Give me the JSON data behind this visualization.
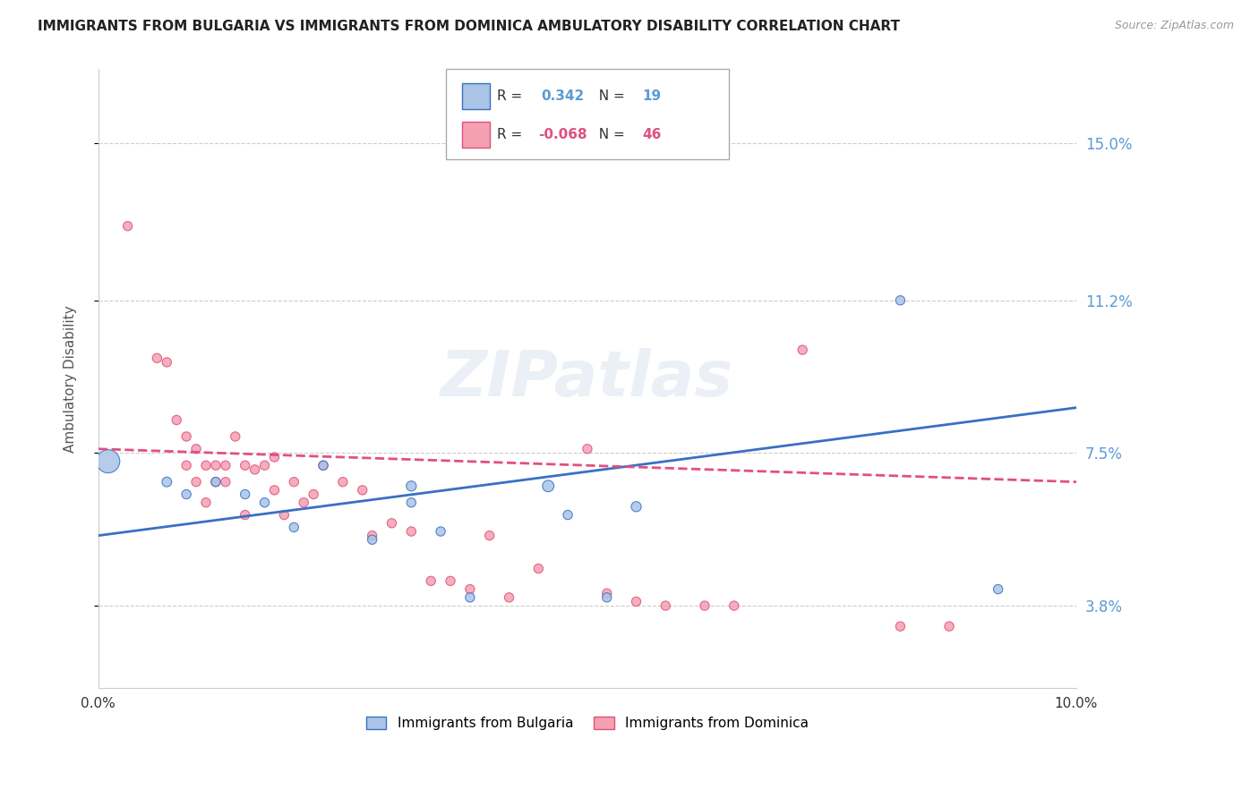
{
  "title": "IMMIGRANTS FROM BULGARIA VS IMMIGRANTS FROM DOMINICA AMBULATORY DISABILITY CORRELATION CHART",
  "source": "Source: ZipAtlas.com",
  "ylabel": "Ambulatory Disability",
  "ytick_labels": [
    "3.8%",
    "7.5%",
    "11.2%",
    "15.0%"
  ],
  "ytick_values": [
    0.038,
    0.075,
    0.112,
    0.15
  ],
  "xlim": [
    0.0,
    0.1
  ],
  "ylim": [
    0.018,
    0.168
  ],
  "legend_label1": "Immigrants from Bulgaria",
  "legend_label2": "Immigrants from Dominica",
  "bulgaria_R": "0.342",
  "bulgaria_N": "19",
  "dominica_R": "-0.068",
  "dominica_N": "46",
  "color_bulgaria": "#aac4e8",
  "color_dominica": "#f4a0b0",
  "color_bulgaria_line": "#3a6fc4",
  "color_dominica_line": "#e05080",
  "watermark": "ZIPatlas",
  "bulgaria_x": [
    0.001,
    0.007,
    0.009,
    0.012,
    0.015,
    0.017,
    0.02,
    0.023,
    0.028,
    0.032,
    0.032,
    0.035,
    0.038,
    0.046,
    0.048,
    0.052,
    0.055,
    0.082,
    0.092
  ],
  "bulgaria_y": [
    0.073,
    0.068,
    0.065,
    0.068,
    0.065,
    0.063,
    0.057,
    0.072,
    0.054,
    0.067,
    0.063,
    0.056,
    0.04,
    0.067,
    0.06,
    0.04,
    0.062,
    0.112,
    0.042
  ],
  "bulgaria_size": [
    350,
    60,
    55,
    55,
    55,
    55,
    55,
    55,
    55,
    65,
    55,
    55,
    55,
    85,
    55,
    55,
    65,
    55,
    55
  ],
  "dominica_x": [
    0.003,
    0.006,
    0.007,
    0.008,
    0.009,
    0.009,
    0.01,
    0.01,
    0.011,
    0.011,
    0.012,
    0.012,
    0.013,
    0.013,
    0.014,
    0.015,
    0.015,
    0.016,
    0.017,
    0.018,
    0.018,
    0.019,
    0.02,
    0.021,
    0.022,
    0.023,
    0.025,
    0.027,
    0.028,
    0.03,
    0.032,
    0.034,
    0.036,
    0.038,
    0.04,
    0.042,
    0.045,
    0.05,
    0.052,
    0.055,
    0.058,
    0.062,
    0.065,
    0.072,
    0.082,
    0.087
  ],
  "dominica_y": [
    0.13,
    0.098,
    0.097,
    0.083,
    0.079,
    0.072,
    0.076,
    0.068,
    0.072,
    0.063,
    0.072,
    0.068,
    0.072,
    0.068,
    0.079,
    0.072,
    0.06,
    0.071,
    0.072,
    0.074,
    0.066,
    0.06,
    0.068,
    0.063,
    0.065,
    0.072,
    0.068,
    0.066,
    0.055,
    0.058,
    0.056,
    0.044,
    0.044,
    0.042,
    0.055,
    0.04,
    0.047,
    0.076,
    0.041,
    0.039,
    0.038,
    0.038,
    0.038,
    0.1,
    0.033,
    0.033
  ],
  "dominica_size": [
    55,
    55,
    55,
    55,
    55,
    55,
    55,
    55,
    55,
    55,
    55,
    55,
    55,
    55,
    55,
    55,
    55,
    55,
    55,
    55,
    55,
    55,
    55,
    55,
    55,
    55,
    55,
    55,
    55,
    55,
    55,
    55,
    55,
    55,
    55,
    55,
    55,
    55,
    55,
    55,
    55,
    55,
    55,
    55,
    55,
    55
  ]
}
